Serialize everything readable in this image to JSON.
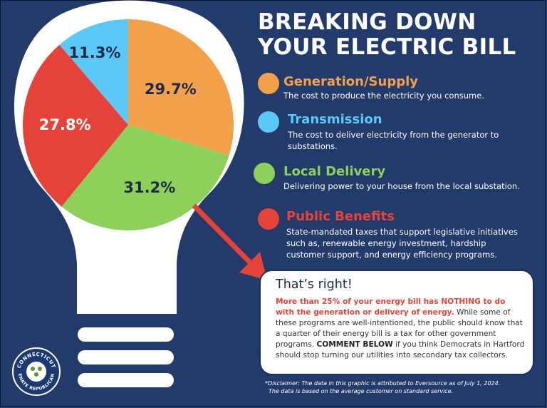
{
  "title_line1": "BREAKING DOWN",
  "title_line2": "YOUR ELECTRIC BILL",
  "colors": {
    "background": "#223b6b",
    "generation": "#f2a14a",
    "transmission": "#5bc8f5",
    "local_delivery": "#8dd15a",
    "public_benefits": "#e5423a",
    "bulb": "#ffffff"
  },
  "legend": [
    {
      "name": "Generation/Supply",
      "desc": "The cost to produce the electricity you consume.",
      "color": "#f2a14a",
      "head_color": "#f2a14a"
    },
    {
      "name": "Transmission",
      "desc": "The cost to deliver electricity from the generator to substations.",
      "color": "#5bc8f5",
      "head_color": "#5bc8f5"
    },
    {
      "name": "Local Delivery",
      "desc": "Delivering power to your house from the local substation.",
      "color": "#8dd15a",
      "head_color": "#8dd15a"
    },
    {
      "name": "Public Benefits",
      "desc": "State-mandated taxes that support legislative initiatives such as, renewable energy investment, hardship customer support, and energy efficiency programs.",
      "color": "#e5423a",
      "head_color": "#e5423a"
    }
  ],
  "chart_data": {
    "type": "pie",
    "title": "BREAKING DOWN YOUR ELECTRIC BILL",
    "categories": [
      "Generation/Supply",
      "Local Delivery",
      "Public Benefits",
      "Transmission"
    ],
    "values": [
      29.7,
      31.2,
      27.8,
      11.3
    ],
    "labels": [
      "29.7%",
      "31.2%",
      "27.8%",
      "11.3%"
    ],
    "colors": [
      "#f2a14a",
      "#8dd15a",
      "#e5423a",
      "#5bc8f5"
    ],
    "label_colors": [
      "#1d2b4a",
      "#1d2b4a",
      "#ffffff",
      "#1d2b4a"
    ],
    "start_angle_deg": 0,
    "direction": "clockwise"
  },
  "callout": {
    "title": "That’s right!",
    "red_text": "More than 25% of your energy bill has NOTHING to do with the generation or delivery of energy.",
    "text1": " While some of these programs are well-intentioned, the public should know that a quarter of their energy bill is a tax for other government programs. ",
    "bold_text": "COMMENT BELOW",
    "text2": " if you think Democrats in Hartford should stop turning our utilities into secondary tax collectors."
  },
  "disclaimer_line1": "*Disclaimer: The data in this graphic is attributed to Eversource as of July 1, 2024.",
  "disclaimer_line2": "The data is based on the average customer on standard service.",
  "seal": {
    "top_text": "CONNECTICUT",
    "bottom_text": "SENATE REPUBLICANS"
  }
}
